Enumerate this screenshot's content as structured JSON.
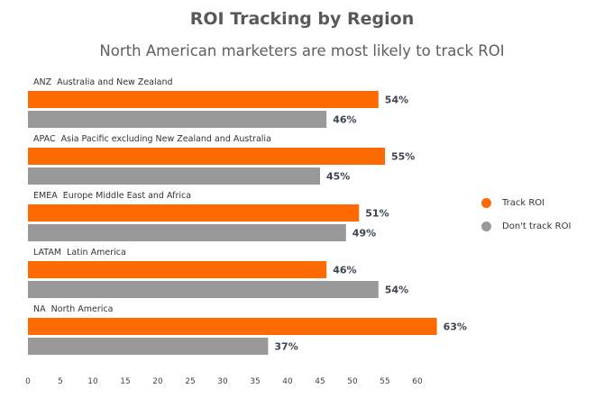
{
  "chart_data": {
    "type": "bar",
    "orientation": "horizontal",
    "title": "ROI Tracking by Region",
    "subtitle": "North American marketers are most likely to track ROI",
    "categories": [
      "ANZ  Australia and New Zealand",
      "APAC  Asia Pacific excluding New Zealand and Australia",
      "EMEA  Europe Middle East and Africa",
      "LATAM  Latin America",
      "NA  North America"
    ],
    "series": [
      {
        "name": "Track ROI",
        "color": "#FF6A00",
        "values": [
          54,
          55,
          51,
          46,
          63
        ]
      },
      {
        "name": "Don't track ROI",
        "color": "#999999",
        "values": [
          46,
          45,
          49,
          54,
          37
        ]
      }
    ],
    "value_suffix": "%",
    "xlim": [
      0,
      65
    ],
    "xticks": [
      0,
      5,
      10,
      15,
      20,
      25,
      30,
      35,
      40,
      45,
      50,
      55,
      60
    ],
    "legend_position": "right",
    "grid": false
  }
}
